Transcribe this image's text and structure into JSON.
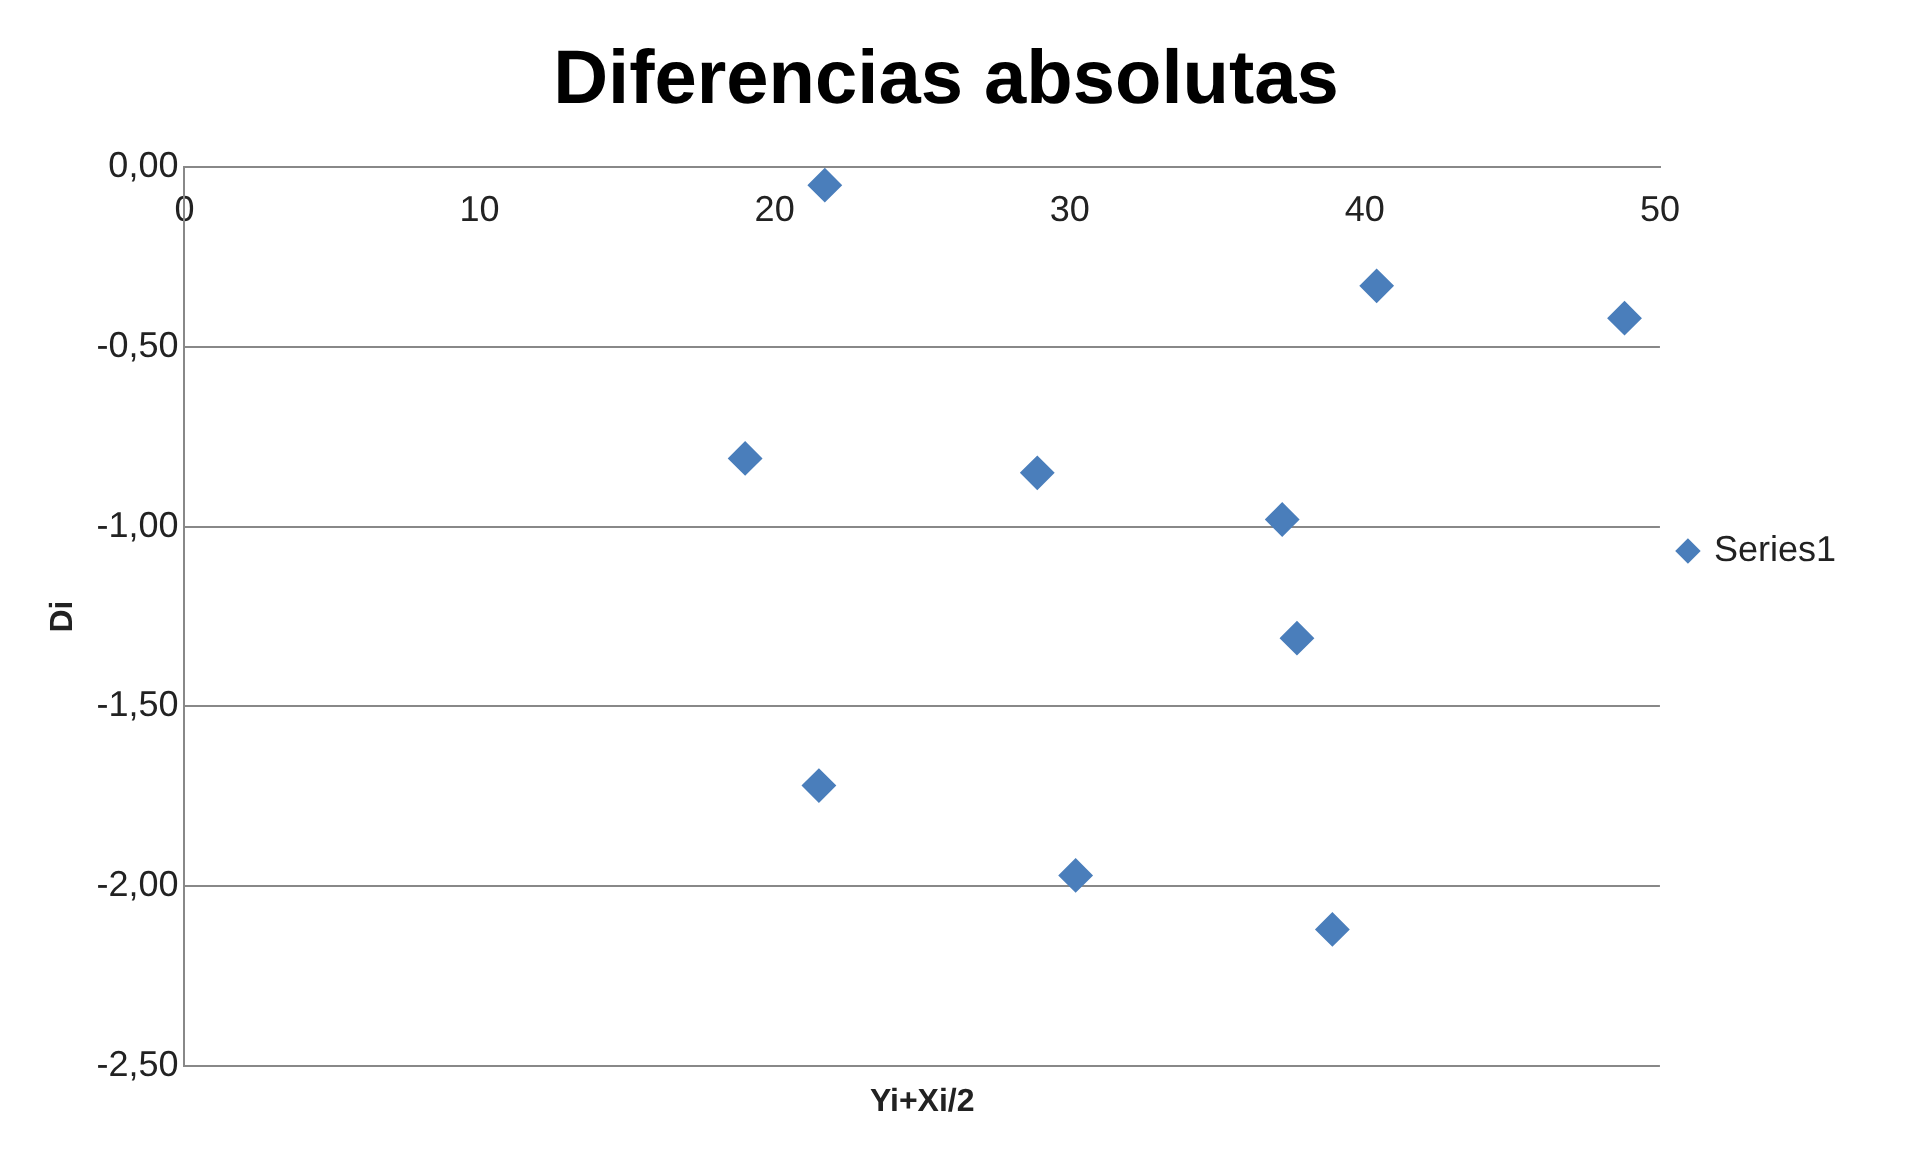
{
  "chart_data": {
    "type": "scatter",
    "title": "Diferencias absolutas",
    "xlabel": "Yi+Xi/2",
    "ylabel": "Di",
    "x": [
      21.7,
      40.4,
      48.8,
      19.0,
      28.9,
      37.2,
      37.7,
      21.5,
      30.2,
      38.9
    ],
    "series": [
      {
        "name": "Series1",
        "color": "#4a7ebb",
        "values": [
          -0.05,
          -0.33,
          -0.42,
          -0.81,
          -0.85,
          -0.98,
          -1.31,
          -1.72,
          -1.97,
          -2.12
        ]
      }
    ],
    "xlim": [
      0,
      50
    ],
    "xticks": [
      0,
      10,
      20,
      30,
      40,
      50
    ],
    "ylim": [
      -2.5,
      0
    ],
    "yticks": [
      {
        "value": 0,
        "label": "0,00"
      },
      {
        "value": -0.5,
        "label": "-0,50"
      },
      {
        "value": -1,
        "label": "-1,00"
      },
      {
        "value": -1.5,
        "label": "-1,50"
      },
      {
        "value": -2,
        "label": "-2,00"
      },
      {
        "value": -2.5,
        "label": "-2,50"
      }
    ],
    "grid": "y",
    "legend": "right",
    "marker": "diamond"
  }
}
